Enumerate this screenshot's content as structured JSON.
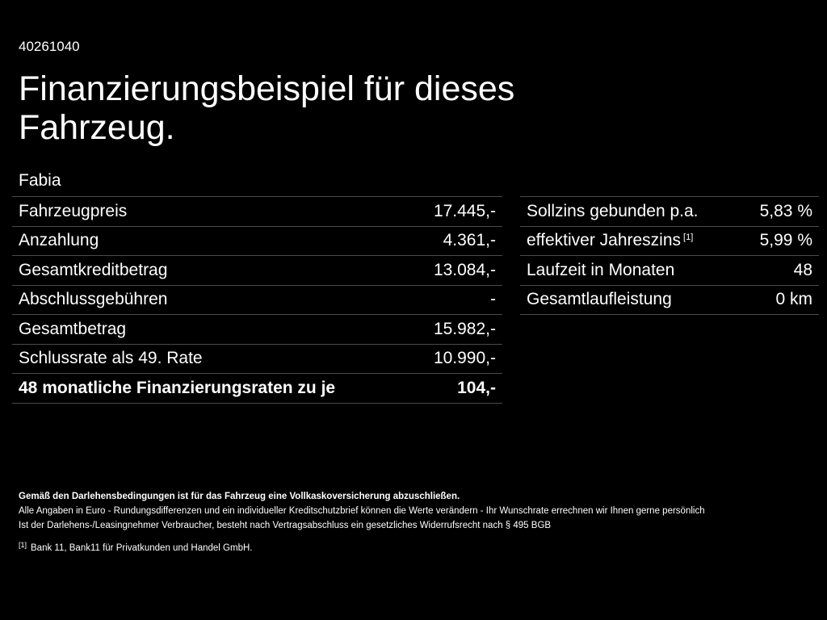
{
  "ref_id": "40261040",
  "title": "Finanzierungsbeispiel für dieses Fahrzeug.",
  "model": "Fabia",
  "left_table": [
    {
      "label": "Fahrzeugpreis",
      "value": "17.445,-"
    },
    {
      "label": "Anzahlung",
      "value": "4.361,-"
    },
    {
      "label": "Gesamtkreditbetrag",
      "value": "13.084,-"
    },
    {
      "label": "Abschlussgebühren",
      "value": "-"
    },
    {
      "label": "Gesamtbetrag",
      "value": "15.982,-"
    },
    {
      "label": "Schlussrate als 49. Rate",
      "value": "10.990,-"
    },
    {
      "label": "48 monatliche Finanzierungsraten zu je",
      "value": "104,-"
    }
  ],
  "right_table": [
    {
      "label": "Sollzins gebunden p.a.",
      "value": "5,83 %"
    },
    {
      "label": "effektiver Jahreszins",
      "footnote": "[1]",
      "value": "5,99 %"
    },
    {
      "label": "Laufzeit in Monaten",
      "value": "48"
    },
    {
      "label": "Gesamtlaufleistung",
      "value": "0 km"
    }
  ],
  "footer": {
    "bold_note": "Gemäß den Darlehensbedingungen ist für das Fahrzeug eine Vollkaskoversicherung abzuschließen.",
    "line1": "Alle Angaben in Euro - Rundungsdifferenzen und ein individueller Kreditschutzbrief können die Werte verändern - Ihr Wunschrate errechnen wir Ihnen gerne persönlich",
    "line2": "Ist der Darlehens-/Leasingnehmer Verbraucher, besteht nach Vertragsabschluss ein gesetzliches Widerrufsrecht nach § 495 BGB",
    "footnote_marker": "[1]",
    "footnote_text": "Bank 11, Bank11 für Privatkunden und Handel GmbH."
  }
}
